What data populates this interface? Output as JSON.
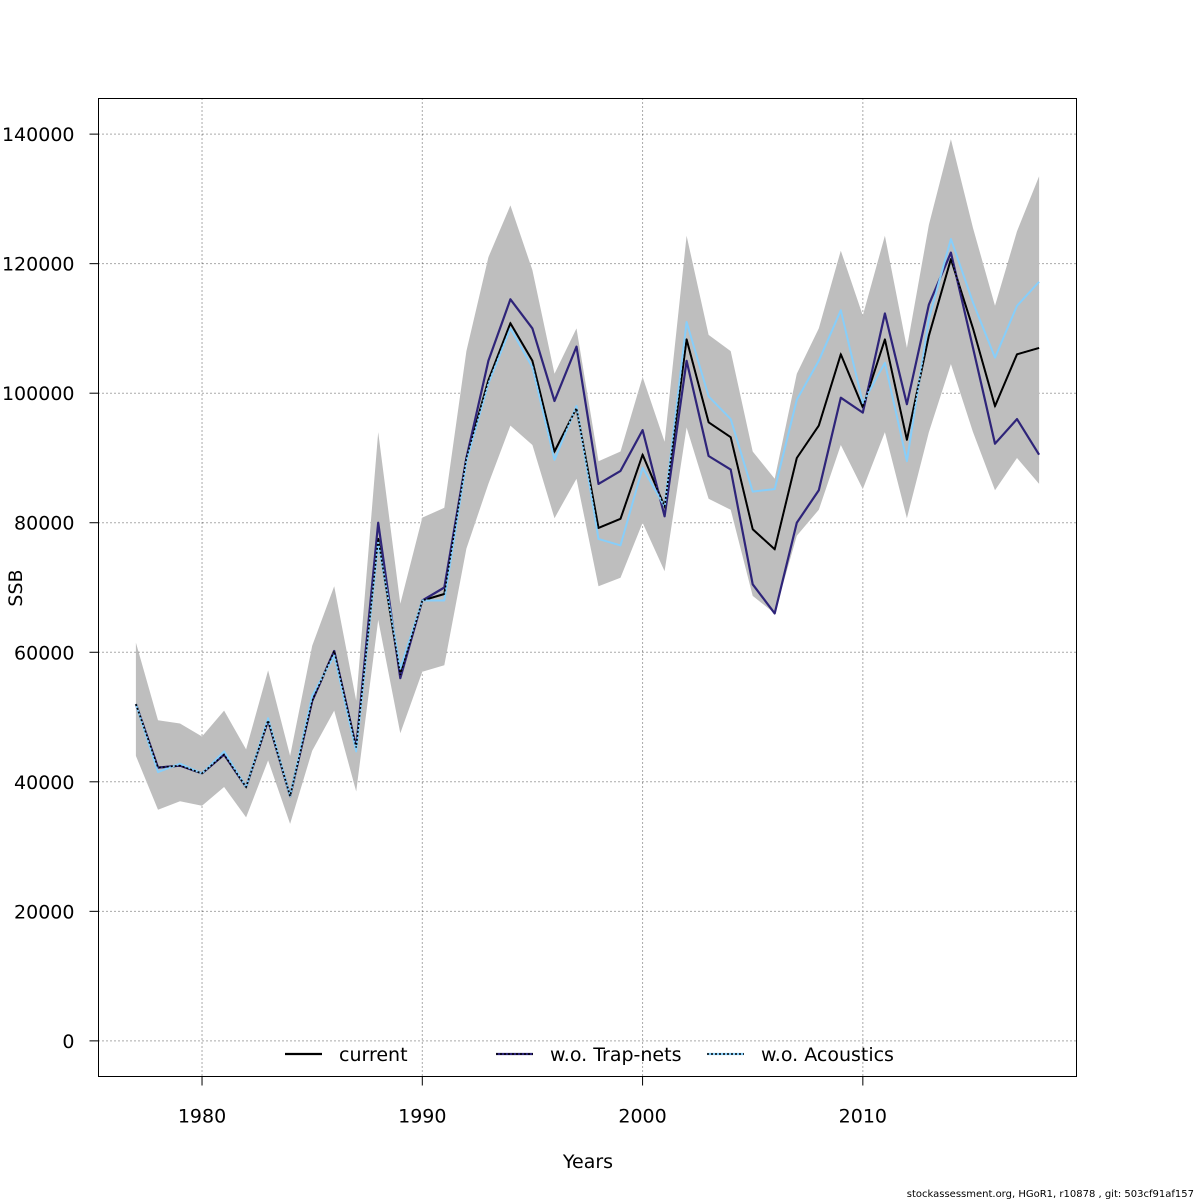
{
  "footer": "stockassessment.org, HGoR1, r10878 , git: 503cf91af157",
  "colors": {
    "band": "#bebebe",
    "current": "#000000",
    "trapnets": "#2e2479",
    "acoustics": "#87cefa",
    "grid": "#555555"
  },
  "chart_data": {
    "type": "line",
    "xlabel": "Years",
    "ylabel": "SSB",
    "xlim": [
      1975.3,
      2019.7
    ],
    "ylim": [
      -5500,
      145500
    ],
    "xticks": [
      1980,
      1990,
      2000,
      2010
    ],
    "yticks": [
      0,
      20000,
      40000,
      60000,
      80000,
      100000,
      120000,
      140000
    ],
    "grid": true,
    "legend_position": "bottom",
    "x": [
      1977,
      1978,
      1979,
      1980,
      1981,
      1982,
      1983,
      1984,
      1985,
      1986,
      1987,
      1988,
      1989,
      1990,
      1991,
      1992,
      1993,
      1994,
      1995,
      1996,
      1997,
      1998,
      1999,
      2000,
      2001,
      2002,
      2003,
      2004,
      2005,
      2006,
      2007,
      2008,
      2009,
      2010,
      2011,
      2012,
      2013,
      2014,
      2015,
      2016,
      2017,
      2018
    ],
    "band": {
      "name": "confidence band (current)",
      "upper": [
        61500,
        49500,
        49000,
        47000,
        51000,
        45000,
        57200,
        44000,
        61000,
        70200,
        52500,
        94000,
        67500,
        80800,
        82300,
        106500,
        121000,
        129000,
        119000,
        103000,
        110000,
        89500,
        91000,
        102500,
        92500,
        124300,
        109000,
        106500,
        91000,
        86800,
        103000,
        110000,
        122000,
        112000,
        124300,
        107000,
        126000,
        139200,
        125500,
        113500,
        125000,
        133500
      ],
      "lower": [
        44000,
        35700,
        37000,
        36300,
        39200,
        34500,
        43300,
        33500,
        44800,
        51000,
        38500,
        65000,
        47500,
        57000,
        58000,
        76000,
        86000,
        95000,
        92000,
        80700,
        86800,
        70200,
        71500,
        80000,
        72500,
        94700,
        83700,
        82000,
        68700,
        66000,
        78000,
        82000,
        92000,
        85200,
        94000,
        80700,
        94000,
        104500,
        94000,
        85000,
        90000,
        86000
      ]
    },
    "series": [
      {
        "name": "current",
        "values": [
          52000,
          42200,
          42500,
          41300,
          44200,
          39200,
          49500,
          37800,
          52500,
          60200,
          45300,
          77500,
          56500,
          68000,
          69000,
          90000,
          102000,
          110800,
          105000,
          91000,
          97700,
          79200,
          80600,
          90500,
          82500,
          108300,
          95500,
          93200,
          79000,
          75900,
          90000,
          95000,
          106000,
          97800,
          108300,
          92800,
          108900,
          120700,
          110000,
          98000,
          106000,
          107000
        ]
      },
      {
        "name": "w.o. Trap-nets",
        "values": [
          52000,
          42200,
          42500,
          41300,
          44200,
          39200,
          49500,
          37800,
          52500,
          60200,
          45300,
          80000,
          56000,
          68000,
          70000,
          90000,
          105000,
          114500,
          110000,
          98800,
          107200,
          86000,
          88000,
          94300,
          81000,
          105000,
          90300,
          88200,
          70500,
          66000,
          80000,
          85000,
          99300,
          97000,
          112300,
          98300,
          113700,
          121700,
          107000,
          92200,
          96000,
          90500
        ]
      },
      {
        "name": "w.o. Acoustics",
        "values": [
          52000,
          41500,
          42800,
          41300,
          44700,
          39200,
          49800,
          37800,
          53300,
          59500,
          44700,
          77000,
          57500,
          68000,
          68000,
          89500,
          101500,
          110000,
          104000,
          89700,
          98000,
          77500,
          76500,
          88500,
          82500,
          111000,
          99500,
          96000,
          84800,
          85200,
          99000,
          105000,
          112800,
          98500,
          104700,
          89500,
          111500,
          123800,
          114000,
          105500,
          113500,
          117200
        ]
      }
    ]
  }
}
